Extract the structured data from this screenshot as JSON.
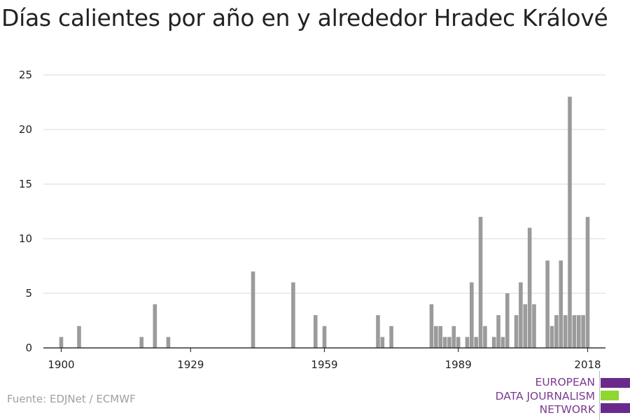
{
  "title": "Días calientes por año en y alrededor Hradec Králové",
  "source": "Fuente: EDJNet / ECMWF",
  "logo": {
    "lines": [
      "EUROPEAN",
      "DATA JOURNALISM",
      "NETWORK"
    ],
    "colors": {
      "purple": "#6a2a8c",
      "green": "#8fd630",
      "text": "#7a3a8f"
    }
  },
  "colors": {
    "bar": "#9b9b9b",
    "grid": "#e1e1e1",
    "axis": "#333333",
    "text": "#222222"
  },
  "chart_data": {
    "type": "bar",
    "title": "Días calientes por año en y alrededor Hradec Králové",
    "xlabel": "",
    "ylabel": "",
    "xlim": [
      1896,
      2022
    ],
    "ylim": [
      0,
      25
    ],
    "y_ticks": [
      0,
      5,
      10,
      15,
      20,
      25
    ],
    "x_ticks": [
      1900,
      1929,
      1959,
      1989,
      2018
    ],
    "grid": true,
    "x": [
      1900,
      1904,
      1918,
      1921,
      1924,
      1943,
      1952,
      1957,
      1959,
      1971,
      1972,
      1974,
      1983,
      1984,
      1985,
      1986,
      1987,
      1988,
      1989,
      1991,
      1992,
      1993,
      1994,
      1995,
      1997,
      1998,
      1999,
      2000,
      2002,
      2003,
      2004,
      2005,
      2006,
      2009,
      2010,
      2011,
      2012,
      2013,
      2014,
      2015,
      2016,
      2017,
      2018
    ],
    "values": [
      1,
      2,
      1,
      4,
      1,
      7,
      6,
      3,
      2,
      3,
      1,
      2,
      4,
      2,
      2,
      1,
      1,
      2,
      1,
      1,
      6,
      1,
      12,
      2,
      1,
      3,
      1,
      5,
      3,
      6,
      4,
      11,
      4,
      8,
      2,
      3,
      8,
      3,
      23,
      3,
      3,
      3,
      12
    ]
  }
}
